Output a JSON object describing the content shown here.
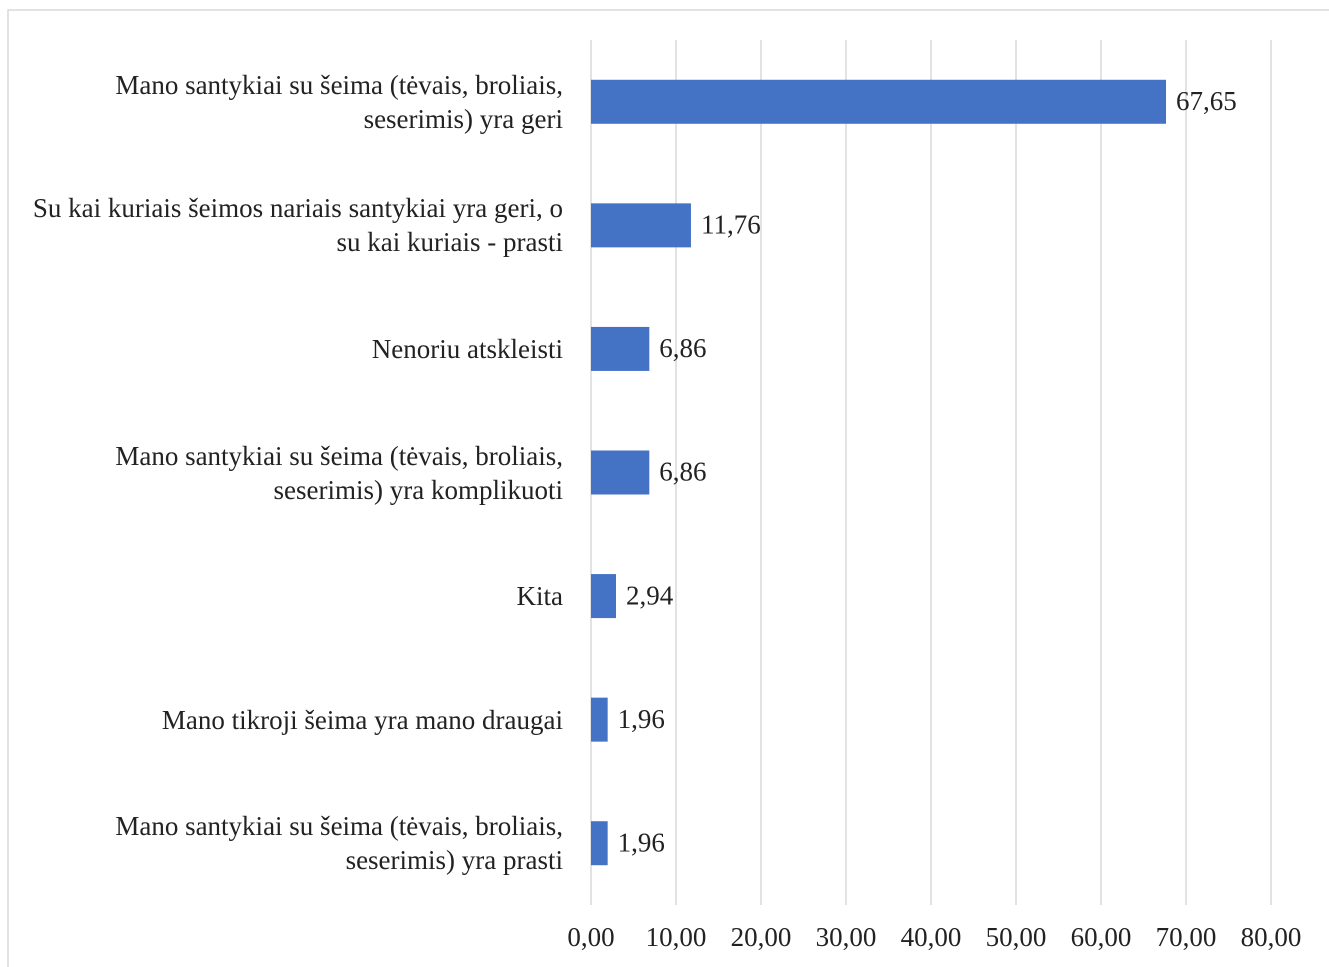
{
  "chart_data": {
    "type": "barh",
    "categories": [
      "Mano santykiai su šeima (tėvais, broliais, seserimis) yra geri",
      "Su kai kuriais šeimos nariais santykiai yra geri, o su kai kuriais - prasti",
      "Nenoriu atskleisti",
      "Mano santykiai su šeima (tėvais, broliais, seserimis) yra komplikuoti",
      "Kita",
      "Mano tikroji šeima yra mano draugai",
      "Mano santykiai su šeima (tėvais, broliais, seserimis) yra prasti"
    ],
    "values": [
      67.65,
      11.76,
      6.86,
      6.86,
      2.94,
      1.96,
      1.96
    ],
    "value_labels": [
      "67,65",
      "11,76",
      "6,86",
      "6,86",
      "2,94",
      "1,96",
      "1,96"
    ],
    "color": "#4472c4",
    "xlim": [
      0,
      80
    ],
    "xticks": [
      {
        "value": 0,
        "label": "0,00"
      },
      {
        "value": 10,
        "label": "10,00"
      },
      {
        "value": 20,
        "label": "20,00"
      },
      {
        "value": 30,
        "label": "30,00"
      },
      {
        "value": 40,
        "label": "40,00"
      },
      {
        "value": 50,
        "label": "50,00"
      },
      {
        "value": 60,
        "label": "60,00"
      },
      {
        "value": 70,
        "label": "70,00"
      },
      {
        "value": 80,
        "label": "80,00"
      }
    ],
    "grid": true
  }
}
